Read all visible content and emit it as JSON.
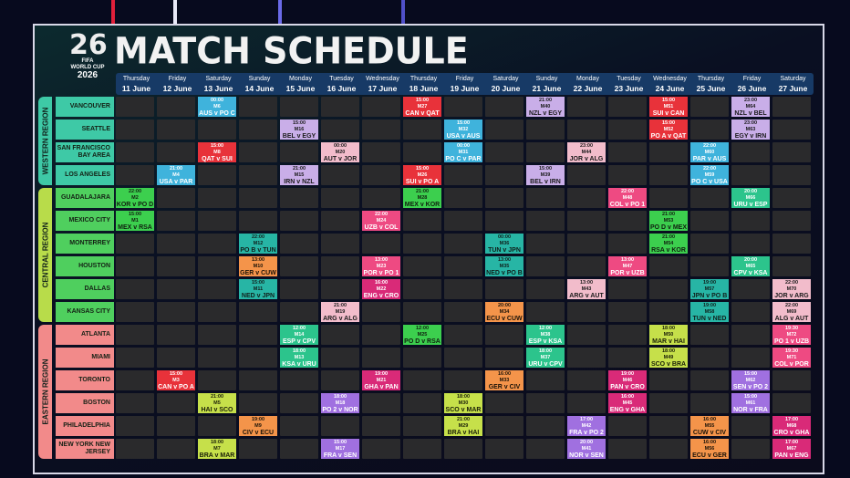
{
  "title": "MATCH SCHEDULE",
  "logo": {
    "mark": "26",
    "brand": "FIFA",
    "line1": "WORLD CUP",
    "year": "2026"
  },
  "days": [
    {
      "name": "Thursday",
      "date": "11 June"
    },
    {
      "name": "Friday",
      "date": "12 June"
    },
    {
      "name": "Saturday",
      "date": "13 June"
    },
    {
      "name": "Sunday",
      "date": "14 June"
    },
    {
      "name": "Monday",
      "date": "15 June"
    },
    {
      "name": "Tuesday",
      "date": "16 June"
    },
    {
      "name": "Wednesday",
      "date": "17 June"
    },
    {
      "name": "Thursday",
      "date": "18 June"
    },
    {
      "name": "Friday",
      "date": "19 June"
    },
    {
      "name": "Saturday",
      "date": "20 June"
    },
    {
      "name": "Sunday",
      "date": "21 June"
    },
    {
      "name": "Monday",
      "date": "22 June"
    },
    {
      "name": "Tuesday",
      "date": "23 June"
    },
    {
      "name": "Wednesday",
      "date": "24 June"
    },
    {
      "name": "Thursday",
      "date": "25 June"
    },
    {
      "name": "Friday",
      "date": "26 June"
    },
    {
      "name": "Saturday",
      "date": "27 June"
    }
  ],
  "regions": [
    {
      "name": "WESTERN REGION",
      "color": "#3ec9a6",
      "cities": 4
    },
    {
      "name": "CENTRAL REGION",
      "color": "#b8dc4a",
      "cities": 6
    },
    {
      "name": "EASTERN REGION",
      "color": "#f28a8a",
      "cities": 6
    }
  ],
  "cities": [
    {
      "name": "VANCOUVER",
      "color": "#3ec9a6",
      "matches": [
        {
          "date": "13 June",
          "time": "00:00",
          "id": "M6",
          "teams": "AUS v PO C",
          "bg": "#3fb3dc",
          "fg": "#ffffff"
        },
        {
          "date": "18 June",
          "time": "15:00",
          "id": "M27",
          "teams": "CAN v QAT",
          "bg": "#e8323a",
          "fg": "#ffffff"
        },
        {
          "date": "21 June",
          "time": "21:00",
          "id": "M40",
          "teams": "NZL v EGY",
          "bg": "#c9aee8",
          "fg": "#1a1a1a"
        },
        {
          "date": "24 June",
          "time": "15:00",
          "id": "M51",
          "teams": "SUI v CAN",
          "bg": "#e8323a",
          "fg": "#ffffff"
        },
        {
          "date": "26 June",
          "time": "23:00",
          "id": "M64",
          "teams": "NZL v BEL",
          "bg": "#c9aee8",
          "fg": "#1a1a1a"
        }
      ]
    },
    {
      "name": "SEATTLE",
      "color": "#3ec9a6",
      "matches": [
        {
          "date": "15 June",
          "time": "15:00",
          "id": "M16",
          "teams": "BEL v EGY",
          "bg": "#c9aee8",
          "fg": "#1a1a1a"
        },
        {
          "date": "19 June",
          "time": "15:00",
          "id": "M32",
          "teams": "USA v AUS",
          "bg": "#3fb3dc",
          "fg": "#ffffff"
        },
        {
          "date": "24 June",
          "time": "15:00",
          "id": "M52",
          "teams": "PO A v QAT",
          "bg": "#e8323a",
          "fg": "#ffffff"
        },
        {
          "date": "26 June",
          "time": "23:00",
          "id": "M63",
          "teams": "EGY v IRN",
          "bg": "#c9aee8",
          "fg": "#1a1a1a"
        }
      ]
    },
    {
      "name": "SAN FRANCISCO BAY AREA",
      "color": "#3ec9a6",
      "matches": [
        {
          "date": "13 June",
          "time": "15:00",
          "id": "M8",
          "teams": "QAT v SUI",
          "bg": "#e8323a",
          "fg": "#ffffff"
        },
        {
          "date": "16 June",
          "time": "00:00",
          "id": "M20",
          "teams": "AUT v JOR",
          "bg": "#f2bccb",
          "fg": "#1a1a1a"
        },
        {
          "date": "19 June",
          "time": "00:00",
          "id": "M31",
          "teams": "PO C v PAR",
          "bg": "#3fb3dc",
          "fg": "#ffffff"
        },
        {
          "date": "22 June",
          "time": "23:00",
          "id": "M44",
          "teams": "JOR v ALG",
          "bg": "#f2bccb",
          "fg": "#1a1a1a"
        },
        {
          "date": "25 June",
          "time": "22:00",
          "id": "M60",
          "teams": "PAR v AUS",
          "bg": "#3fb3dc",
          "fg": "#ffffff"
        }
      ]
    },
    {
      "name": "LOS ANGELES",
      "color": "#3ec9a6",
      "matches": [
        {
          "date": "12 June",
          "time": "21:00",
          "id": "M4",
          "teams": "USA v PAR",
          "bg": "#3fb3dc",
          "fg": "#ffffff"
        },
        {
          "date": "15 June",
          "time": "21:00",
          "id": "M15",
          "teams": "IRN v NZL",
          "bg": "#c9aee8",
          "fg": "#1a1a1a"
        },
        {
          "date": "18 June",
          "time": "15:00",
          "id": "M26",
          "teams": "SUI v PO A",
          "bg": "#e8323a",
          "fg": "#ffffff"
        },
        {
          "date": "21 June",
          "time": "15:00",
          "id": "M39",
          "teams": "BEL v IRN",
          "bg": "#c9aee8",
          "fg": "#1a1a1a"
        },
        {
          "date": "25 June",
          "time": "22:00",
          "id": "M59",
          "teams": "PO C v USA",
          "bg": "#3fb3dc",
          "fg": "#ffffff"
        }
      ]
    },
    {
      "name": "GUADALAJARA",
      "color": "#4fcf5e",
      "matches": [
        {
          "date": "11 June",
          "time": "22:00",
          "id": "M2",
          "teams": "KOR v PO D",
          "bg": "#3ccf4e",
          "fg": "#10200f"
        },
        {
          "date": "18 June",
          "time": "21:00",
          "id": "M28",
          "teams": "MEX v KOR",
          "bg": "#3ccf4e",
          "fg": "#10200f"
        },
        {
          "date": "23 June",
          "time": "22:00",
          "id": "M48",
          "teams": "COL v PO 1",
          "bg": "#ee4a82",
          "fg": "#ffffff"
        },
        {
          "date": "26 June",
          "time": "20:00",
          "id": "M66",
          "teams": "URU v ESP",
          "bg": "#2cc48c",
          "fg": "#ffffff"
        }
      ]
    },
    {
      "name": "MEXICO CITY",
      "color": "#4fcf5e",
      "matches": [
        {
          "date": "11 June",
          "time": "15:00",
          "id": "M1",
          "teams": "MEX v RSA",
          "bg": "#3ccf4e",
          "fg": "#10200f"
        },
        {
          "date": "17 June",
          "time": "22:00",
          "id": "M24",
          "teams": "UZB v COL",
          "bg": "#ee4a82",
          "fg": "#ffffff"
        },
        {
          "date": "24 June",
          "time": "21:00",
          "id": "M53",
          "teams": "PO D v MEX",
          "bg": "#3ccf4e",
          "fg": "#10200f"
        }
      ]
    },
    {
      "name": "MONTERREY",
      "color": "#4fcf5e",
      "matches": [
        {
          "date": "14 June",
          "time": "22:00",
          "id": "M12",
          "teams": "PO B v TUN",
          "bg": "#27b5a5",
          "fg": "#10201c"
        },
        {
          "date": "20 June",
          "time": "00:00",
          "id": "M36",
          "teams": "TUN v JPN",
          "bg": "#27b5a5",
          "fg": "#10201c"
        },
        {
          "date": "24 June",
          "time": "21:00",
          "id": "M54",
          "teams": "RSA v KOR",
          "bg": "#3ccf4e",
          "fg": "#10200f"
        }
      ]
    },
    {
      "name": "HOUSTON",
      "color": "#4fcf5e",
      "matches": [
        {
          "date": "14 June",
          "time": "13:00",
          "id": "M10",
          "teams": "GER v CUW",
          "bg": "#f4944a",
          "fg": "#1a1208"
        },
        {
          "date": "17 June",
          "time": "13:00",
          "id": "M23",
          "teams": "POR v PO 1",
          "bg": "#ee4a82",
          "fg": "#ffffff"
        },
        {
          "date": "20 June",
          "time": "13:00",
          "id": "M35",
          "teams": "NED v PO B",
          "bg": "#27b5a5",
          "fg": "#10201c"
        },
        {
          "date": "23 June",
          "time": "13:00",
          "id": "M47",
          "teams": "POR v UZB",
          "bg": "#ee4a82",
          "fg": "#ffffff"
        },
        {
          "date": "26 June",
          "time": "20:00",
          "id": "M65",
          "teams": "CPV v KSA",
          "bg": "#2cc48c",
          "fg": "#ffffff"
        }
      ]
    },
    {
      "name": "DALLAS",
      "color": "#4fcf5e",
      "matches": [
        {
          "date": "14 June",
          "time": "15:00",
          "id": "M11",
          "teams": "NED v JPN",
          "bg": "#27b5a5",
          "fg": "#10201c"
        },
        {
          "date": "17 June",
          "time": "16:00",
          "id": "M22",
          "teams": "ENG v CRO",
          "bg": "#d92a78",
          "fg": "#ffffff"
        },
        {
          "date": "22 June",
          "time": "13:00",
          "id": "M43",
          "teams": "ARG v AUT",
          "bg": "#f2bccb",
          "fg": "#1a1a1a"
        },
        {
          "date": "25 June",
          "time": "19:00",
          "id": "M57",
          "teams": "JPN v PO B",
          "bg": "#27b5a5",
          "fg": "#10201c"
        },
        {
          "date": "27 June",
          "time": "22:00",
          "id": "M70",
          "teams": "JOR v ARG",
          "bg": "#f2bccb",
          "fg": "#1a1a1a"
        }
      ]
    },
    {
      "name": "KANSAS CITY",
      "color": "#4fcf5e",
      "matches": [
        {
          "date": "16 June",
          "time": "21:00",
          "id": "M19",
          "teams": "ARG v ALG",
          "bg": "#f2bccb",
          "fg": "#1a1a1a"
        },
        {
          "date": "20 June",
          "time": "20:00",
          "id": "M34",
          "teams": "ECU v CUW",
          "bg": "#f4944a",
          "fg": "#1a1208"
        },
        {
          "date": "25 June",
          "time": "19:00",
          "id": "M58",
          "teams": "TUN v NED",
          "bg": "#27b5a5",
          "fg": "#10201c"
        },
        {
          "date": "27 June",
          "time": "22:00",
          "id": "M69",
          "teams": "ALG v AUT",
          "bg": "#f2bccb",
          "fg": "#1a1a1a"
        }
      ]
    },
    {
      "name": "ATLANTA",
      "color": "#f28a8a",
      "matches": [
        {
          "date": "15 June",
          "time": "12:00",
          "id": "M14",
          "teams": "ESP v CPV",
          "bg": "#2cc48c",
          "fg": "#ffffff"
        },
        {
          "date": "18 June",
          "time": "12:00",
          "id": "M25",
          "teams": "PO D v RSA",
          "bg": "#3ccf4e",
          "fg": "#10200f"
        },
        {
          "date": "21 June",
          "time": "12:00",
          "id": "M38",
          "teams": "ESP v KSA",
          "bg": "#2cc48c",
          "fg": "#ffffff"
        },
        {
          "date": "24 June",
          "time": "18:00",
          "id": "M50",
          "teams": "MAR v HAI",
          "bg": "#c6e04a",
          "fg": "#1a1f08"
        },
        {
          "date": "27 June",
          "time": "19:30",
          "id": "M72",
          "teams": "PO 1 v UZB",
          "bg": "#ee4a82",
          "fg": "#ffffff"
        }
      ]
    },
    {
      "name": "MIAMI",
      "color": "#f28a8a",
      "matches": [
        {
          "date": "15 June",
          "time": "18:00",
          "id": "M13",
          "teams": "KSA v URU",
          "bg": "#2cc48c",
          "fg": "#ffffff"
        },
        {
          "date": "21 June",
          "time": "18:00",
          "id": "M37",
          "teams": "URU v CPV",
          "bg": "#2cc48c",
          "fg": "#ffffff"
        },
        {
          "date": "24 June",
          "time": "18:00",
          "id": "M49",
          "teams": "SCO v BRA",
          "bg": "#c6e04a",
          "fg": "#1a1f08"
        },
        {
          "date": "27 June",
          "time": "19:30",
          "id": "M71",
          "teams": "COL v POR",
          "bg": "#ee4a82",
          "fg": "#ffffff"
        }
      ]
    },
    {
      "name": "TORONTO",
      "color": "#f28a8a",
      "matches": [
        {
          "date": "12 June",
          "time": "15:00",
          "id": "M3",
          "teams": "CAN v PO A",
          "bg": "#e8323a",
          "fg": "#ffffff"
        },
        {
          "date": "17 June",
          "time": "19:00",
          "id": "M21",
          "teams": "GHA v PAN",
          "bg": "#d92a78",
          "fg": "#ffffff"
        },
        {
          "date": "20 June",
          "time": "16:00",
          "id": "M33",
          "teams": "GER v CIV",
          "bg": "#f4944a",
          "fg": "#1a1208"
        },
        {
          "date": "23 June",
          "time": "19:00",
          "id": "M46",
          "teams": "PAN v CRO",
          "bg": "#d92a78",
          "fg": "#ffffff"
        },
        {
          "date": "26 June",
          "time": "15:00",
          "id": "M62",
          "teams": "SEN v PO 2",
          "bg": "#a070e0",
          "fg": "#ffffff"
        }
      ]
    },
    {
      "name": "BOSTON",
      "color": "#f28a8a",
      "matches": [
        {
          "date": "13 June",
          "time": "21:00",
          "id": "M5",
          "teams": "HAI v SCO",
          "bg": "#c6e04a",
          "fg": "#1a1f08"
        },
        {
          "date": "16 June",
          "time": "18:00",
          "id": "M18",
          "teams": "PO 2 v NOR",
          "bg": "#a070e0",
          "fg": "#ffffff"
        },
        {
          "date": "19 June",
          "time": "18:00",
          "id": "M30",
          "teams": "SCO v MAR",
          "bg": "#c6e04a",
          "fg": "#1a1f08"
        },
        {
          "date": "23 June",
          "time": "16:00",
          "id": "M45",
          "teams": "ENG v GHA",
          "bg": "#d92a78",
          "fg": "#ffffff"
        },
        {
          "date": "26 June",
          "time": "15:00",
          "id": "M61",
          "teams": "NOR v FRA",
          "bg": "#a070e0",
          "fg": "#ffffff"
        }
      ]
    },
    {
      "name": "PHILADELPHIA",
      "color": "#f28a8a",
      "matches": [
        {
          "date": "14 June",
          "time": "19:00",
          "id": "M9",
          "teams": "CIV v ECU",
          "bg": "#f4944a",
          "fg": "#1a1208"
        },
        {
          "date": "19 June",
          "time": "21:00",
          "id": "M29",
          "teams": "BRA v HAI",
          "bg": "#c6e04a",
          "fg": "#1a1f08"
        },
        {
          "date": "22 June",
          "time": "17:00",
          "id": "M42",
          "teams": "FRA v PO 2",
          "bg": "#a070e0",
          "fg": "#ffffff"
        },
        {
          "date": "25 June",
          "time": "16:00",
          "id": "M55",
          "teams": "CUW v CIV",
          "bg": "#f4944a",
          "fg": "#1a1208"
        },
        {
          "date": "27 June",
          "time": "17:00",
          "id": "M68",
          "teams": "CRO v GHA",
          "bg": "#d92a78",
          "fg": "#ffffff"
        }
      ]
    },
    {
      "name": "NEW YORK NEW JERSEY",
      "color": "#f28a8a",
      "matches": [
        {
          "date": "13 June",
          "time": "18:00",
          "id": "M7",
          "teams": "BRA v MAR",
          "bg": "#c6e04a",
          "fg": "#1a1f08"
        },
        {
          "date": "16 June",
          "time": "15:00",
          "id": "M17",
          "teams": "FRA v SEN",
          "bg": "#a070e0",
          "fg": "#ffffff"
        },
        {
          "date": "22 June",
          "time": "20:00",
          "id": "M41",
          "teams": "NOR v SEN",
          "bg": "#a070e0",
          "fg": "#ffffff"
        },
        {
          "date": "25 June",
          "time": "16:00",
          "id": "M56",
          "teams": "ECU v GER",
          "bg": "#f4944a",
          "fg": "#1a1208"
        },
        {
          "date": "27 June",
          "time": "17:00",
          "id": "M67",
          "teams": "PAN v ENG",
          "bg": "#d92a78",
          "fg": "#ffffff"
        }
      ]
    }
  ]
}
